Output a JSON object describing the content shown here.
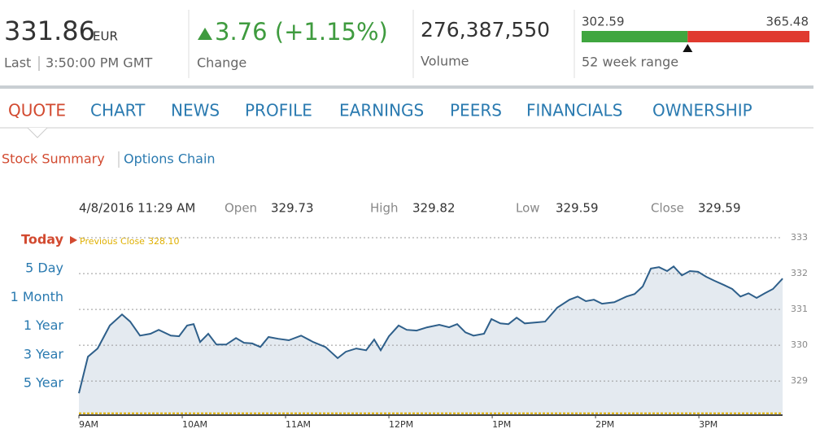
{
  "header": {
    "price": 331.86,
    "currency": "EUR",
    "last_label": "Last",
    "last_time": "3:50:00 PM GMT",
    "change": "3.76 (+1.15%)",
    "change_label": "Change",
    "volume": "276,387,550",
    "volume_label": "Volume",
    "range_low": 302.59,
    "range_high": 365.48,
    "range_label": "52 week range"
  },
  "nav": {
    "tabs": [
      "QUOTE",
      "CHART",
      "NEWS",
      "PROFILE",
      "EARNINGS",
      "PEERS",
      "FINANCIALS",
      "OWNERSHIP"
    ],
    "active": 0
  },
  "subnav": {
    "tabs": [
      "Stock Summary",
      "Options Chain"
    ],
    "active": 0
  },
  "quote_info": {
    "date": "4/8/2016 11:29 AM",
    "fields": [
      {
        "label": "Open",
        "value": 329.73
      },
      {
        "label": "High",
        "value": 329.82
      },
      {
        "label": "Low",
        "value": 329.59
      },
      {
        "label": "Close",
        "value": 329.59
      }
    ]
  },
  "range_options": {
    "items": [
      "Today",
      "5 Day",
      "1 Month",
      "1 Year",
      "3 Year",
      "5 Year"
    ],
    "active": 0
  },
  "chart_data": {
    "type": "line",
    "color": "#2e5f8a",
    "area_color": "#e4eaf0",
    "grid": true,
    "previous_close": {
      "name": "Previous Close",
      "value": 328.1,
      "value_label": "328.10",
      "color": "#e0b000"
    },
    "x": [
      9.0,
      9.087,
      9.181,
      9.299,
      9.417,
      9.496,
      9.591,
      9.693,
      9.772,
      9.89,
      9.969,
      10.047,
      10.11,
      10.173,
      10.252,
      10.331,
      10.425,
      10.52,
      10.598,
      10.677,
      10.756,
      10.835,
      10.929,
      11.031,
      11.15,
      11.268,
      11.386,
      11.504,
      11.583,
      11.685,
      11.78,
      11.858,
      11.921,
      12.0,
      12.094,
      12.173,
      12.268,
      12.37,
      12.488,
      12.583,
      12.661,
      12.74,
      12.819,
      12.921,
      12.992,
      13.079,
      13.157,
      13.236,
      13.315,
      13.433,
      13.512,
      13.63,
      13.748,
      13.827,
      13.906,
      13.984,
      14.063,
      14.181,
      14.299,
      14.378,
      14.457,
      14.535,
      14.614,
      14.693,
      14.756,
      14.835,
      14.913,
      14.992,
      15.071,
      15.15,
      15.244,
      15.323,
      15.402,
      15.48,
      15.559,
      15.638,
      15.717,
      15.811
    ],
    "values": [
      328.66,
      329.68,
      329.91,
      330.55,
      330.86,
      330.66,
      330.27,
      330.32,
      330.43,
      330.27,
      330.25,
      330.55,
      330.59,
      330.09,
      330.32,
      330.02,
      330.02,
      330.2,
      330.07,
      330.05,
      329.95,
      330.23,
      330.18,
      330.14,
      330.27,
      330.09,
      329.95,
      329.64,
      329.82,
      329.91,
      329.86,
      330.16,
      329.86,
      330.25,
      330.55,
      330.43,
      330.41,
      330.5,
      330.57,
      330.5,
      330.59,
      330.36,
      330.27,
      330.32,
      330.73,
      330.61,
      330.59,
      330.77,
      330.61,
      330.64,
      330.66,
      331.05,
      331.27,
      331.36,
      331.23,
      331.27,
      331.16,
      331.2,
      331.36,
      331.43,
      331.64,
      332.14,
      332.18,
      332.07,
      332.2,
      331.95,
      332.07,
      332.05,
      331.91,
      331.8,
      331.68,
      331.57,
      331.36,
      331.45,
      331.32,
      331.45,
      331.57,
      331.86
    ],
    "xlim": [
      9,
      15.81
    ],
    "ylim": [
      328.05,
      333.16
    ],
    "xticks": [
      {
        "value": 9,
        "label": "9AM"
      },
      {
        "value": 10,
        "label": "10AM"
      },
      {
        "value": 11,
        "label": "11AM"
      },
      {
        "value": 12,
        "label": "12PM"
      },
      {
        "value": 13,
        "label": "1PM"
      },
      {
        "value": 14,
        "label": "2PM"
      },
      {
        "value": 15,
        "label": "3PM"
      }
    ],
    "yticks": [
      329,
      330,
      331,
      332,
      333
    ]
  }
}
